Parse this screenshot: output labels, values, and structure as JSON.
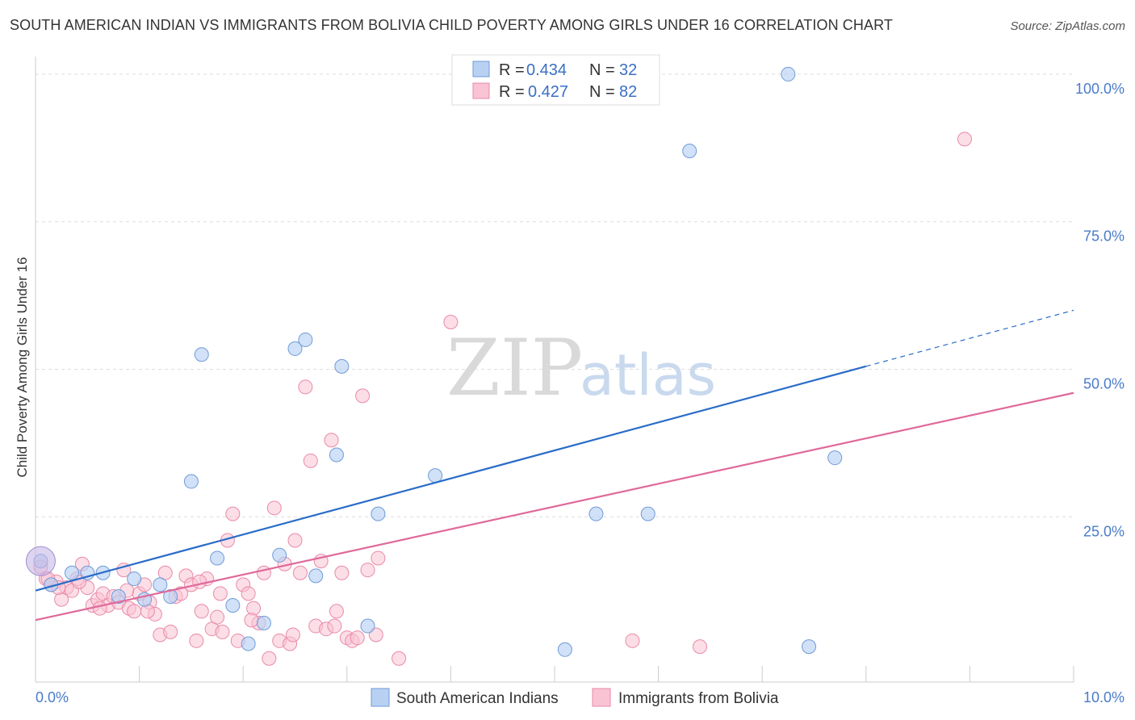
{
  "header": {
    "title": "SOUTH AMERICAN INDIAN VS IMMIGRANTS FROM BOLIVIA CHILD POVERTY AMONG GIRLS UNDER 16 CORRELATION CHART",
    "source": "Source: ZipAtlas.com"
  },
  "watermark": {
    "zip": "ZIP",
    "atlas": "atlas"
  },
  "colors": {
    "blue_fill": "#b8d1f2",
    "blue_stroke": "#6f9bd9",
    "blue_line": "#2a6cc9",
    "pink_fill": "#f9c3d3",
    "pink_stroke": "#e98aa8",
    "pink_line": "#e0699a",
    "tick": "#4a7bc8",
    "grid": "#dddddd"
  },
  "legend": {
    "r_label": "R =",
    "n_label": "N =",
    "blue": {
      "r": "0.434",
      "n": "32"
    },
    "pink": {
      "r": "0.427",
      "n": "82"
    }
  },
  "chart_data": {
    "type": "scatter",
    "title": "SOUTH AMERICAN INDIAN VS IMMIGRANTS FROM BOLIVIA CHILD POVERTY AMONG GIRLS UNDER 16 CORRELATION CHART",
    "xlabel": "",
    "ylabel": "Child Poverty Among Girls Under 16",
    "xlim": [
      0,
      10
    ],
    "ylim": [
      -3,
      103
    ],
    "x_tick_labels": [
      "0.0%",
      "10.0%"
    ],
    "y_ticks": [
      25,
      50,
      75,
      100
    ],
    "y_tick_labels": [
      "25.0%",
      "50.0%",
      "75.0%",
      "100.0%"
    ],
    "series": [
      {
        "name": "South American Indians",
        "color": "blue",
        "r": 0.434,
        "n": 32,
        "trend": {
          "x0": 0,
          "y0": 12.5,
          "x1": 8.0,
          "y1": 50.5,
          "dash_to_x": 10.0,
          "dash_to_y": 60.0
        },
        "points": [
          [
            0.05,
            17.5
          ],
          [
            0.15,
            13.5
          ],
          [
            0.35,
            15.5
          ],
          [
            0.5,
            15.5
          ],
          [
            0.65,
            15.5
          ],
          [
            0.8,
            11.5
          ],
          [
            0.95,
            14.5
          ],
          [
            1.05,
            11
          ],
          [
            1.2,
            13.5
          ],
          [
            1.3,
            11.5
          ],
          [
            1.5,
            31
          ],
          [
            1.6,
            52.5
          ],
          [
            1.75,
            18
          ],
          [
            1.9,
            10
          ],
          [
            2.05,
            3.5
          ],
          [
            2.2,
            7
          ],
          [
            2.35,
            18.5
          ],
          [
            2.5,
            53.5
          ],
          [
            2.6,
            55
          ],
          [
            2.7,
            15
          ],
          [
            2.9,
            35.5
          ],
          [
            2.95,
            50.5
          ],
          [
            3.2,
            6.5
          ],
          [
            3.3,
            25.5
          ],
          [
            3.85,
            32
          ],
          [
            5.1,
            2.5
          ],
          [
            5.4,
            25.5
          ],
          [
            5.9,
            25.5
          ],
          [
            6.3,
            87
          ],
          [
            7.25,
            100
          ],
          [
            7.45,
            3
          ],
          [
            7.7,
            35
          ]
        ]
      },
      {
        "name": "Immigrants from Bolivia",
        "color": "pink",
        "r": 0.427,
        "n": 82,
        "trend": {
          "x0": 0,
          "y0": 7.5,
          "x1": 10.0,
          "y1": 46.0
        },
        "points": [
          [
            0.05,
            16.5
          ],
          [
            0.1,
            14.5
          ],
          [
            0.15,
            13.5
          ],
          [
            0.2,
            14
          ],
          [
            0.25,
            11
          ],
          [
            0.3,
            13
          ],
          [
            0.35,
            12.5
          ],
          [
            0.4,
            14.5
          ],
          [
            0.45,
            17
          ],
          [
            0.5,
            13
          ],
          [
            0.55,
            10
          ],
          [
            0.6,
            11
          ],
          [
            0.65,
            12
          ],
          [
            0.7,
            10
          ],
          [
            0.75,
            11.5
          ],
          [
            0.8,
            10.5
          ],
          [
            0.85,
            16
          ],
          [
            0.9,
            9.5
          ],
          [
            0.95,
            9
          ],
          [
            1.0,
            12
          ],
          [
            1.05,
            13.5
          ],
          [
            1.1,
            10.5
          ],
          [
            1.15,
            8.5
          ],
          [
            1.2,
            5
          ],
          [
            1.25,
            15.5
          ],
          [
            1.3,
            5.5
          ],
          [
            1.35,
            11.5
          ],
          [
            1.4,
            12
          ],
          [
            1.45,
            15
          ],
          [
            1.5,
            13.5
          ],
          [
            1.55,
            4
          ],
          [
            1.6,
            9
          ],
          [
            1.65,
            14.5
          ],
          [
            1.7,
            6
          ],
          [
            1.75,
            8
          ],
          [
            1.8,
            5.5
          ],
          [
            1.85,
            21
          ],
          [
            1.9,
            25.5
          ],
          [
            1.95,
            4
          ],
          [
            2.0,
            13.5
          ],
          [
            2.05,
            12
          ],
          [
            2.1,
            9.5
          ],
          [
            2.15,
            7
          ],
          [
            2.2,
            15.5
          ],
          [
            2.25,
            1
          ],
          [
            2.3,
            26.5
          ],
          [
            2.35,
            4
          ],
          [
            2.4,
            17
          ],
          [
            2.45,
            3.5
          ],
          [
            2.5,
            21
          ],
          [
            2.55,
            15.5
          ],
          [
            2.6,
            47
          ],
          [
            2.65,
            34.5
          ],
          [
            2.7,
            6.5
          ],
          [
            2.75,
            17.5
          ],
          [
            2.8,
            6
          ],
          [
            2.85,
            38
          ],
          [
            2.9,
            9
          ],
          [
            2.95,
            15.5
          ],
          [
            3.0,
            4.5
          ],
          [
            3.05,
            4
          ],
          [
            3.1,
            4.5
          ],
          [
            3.15,
            45.5
          ],
          [
            3.2,
            16
          ],
          [
            3.3,
            18
          ],
          [
            3.5,
            1
          ],
          [
            4.0,
            58
          ],
          [
            5.75,
            4
          ],
          [
            6.4,
            3
          ],
          [
            8.95,
            89
          ],
          [
            0.12,
            14.5
          ],
          [
            0.22,
            13
          ],
          [
            0.42,
            14
          ],
          [
            0.62,
            9.5
          ],
          [
            1.08,
            9
          ],
          [
            1.58,
            14
          ],
          [
            1.78,
            12
          ],
          [
            2.08,
            7.5
          ],
          [
            2.48,
            5
          ],
          [
            2.88,
            6.5
          ],
          [
            3.28,
            5
          ],
          [
            0.88,
            12.5
          ]
        ]
      }
    ]
  },
  "bottom_legend": {
    "blue_label": "South American Indians",
    "pink_label": "Immigrants from Bolivia"
  }
}
